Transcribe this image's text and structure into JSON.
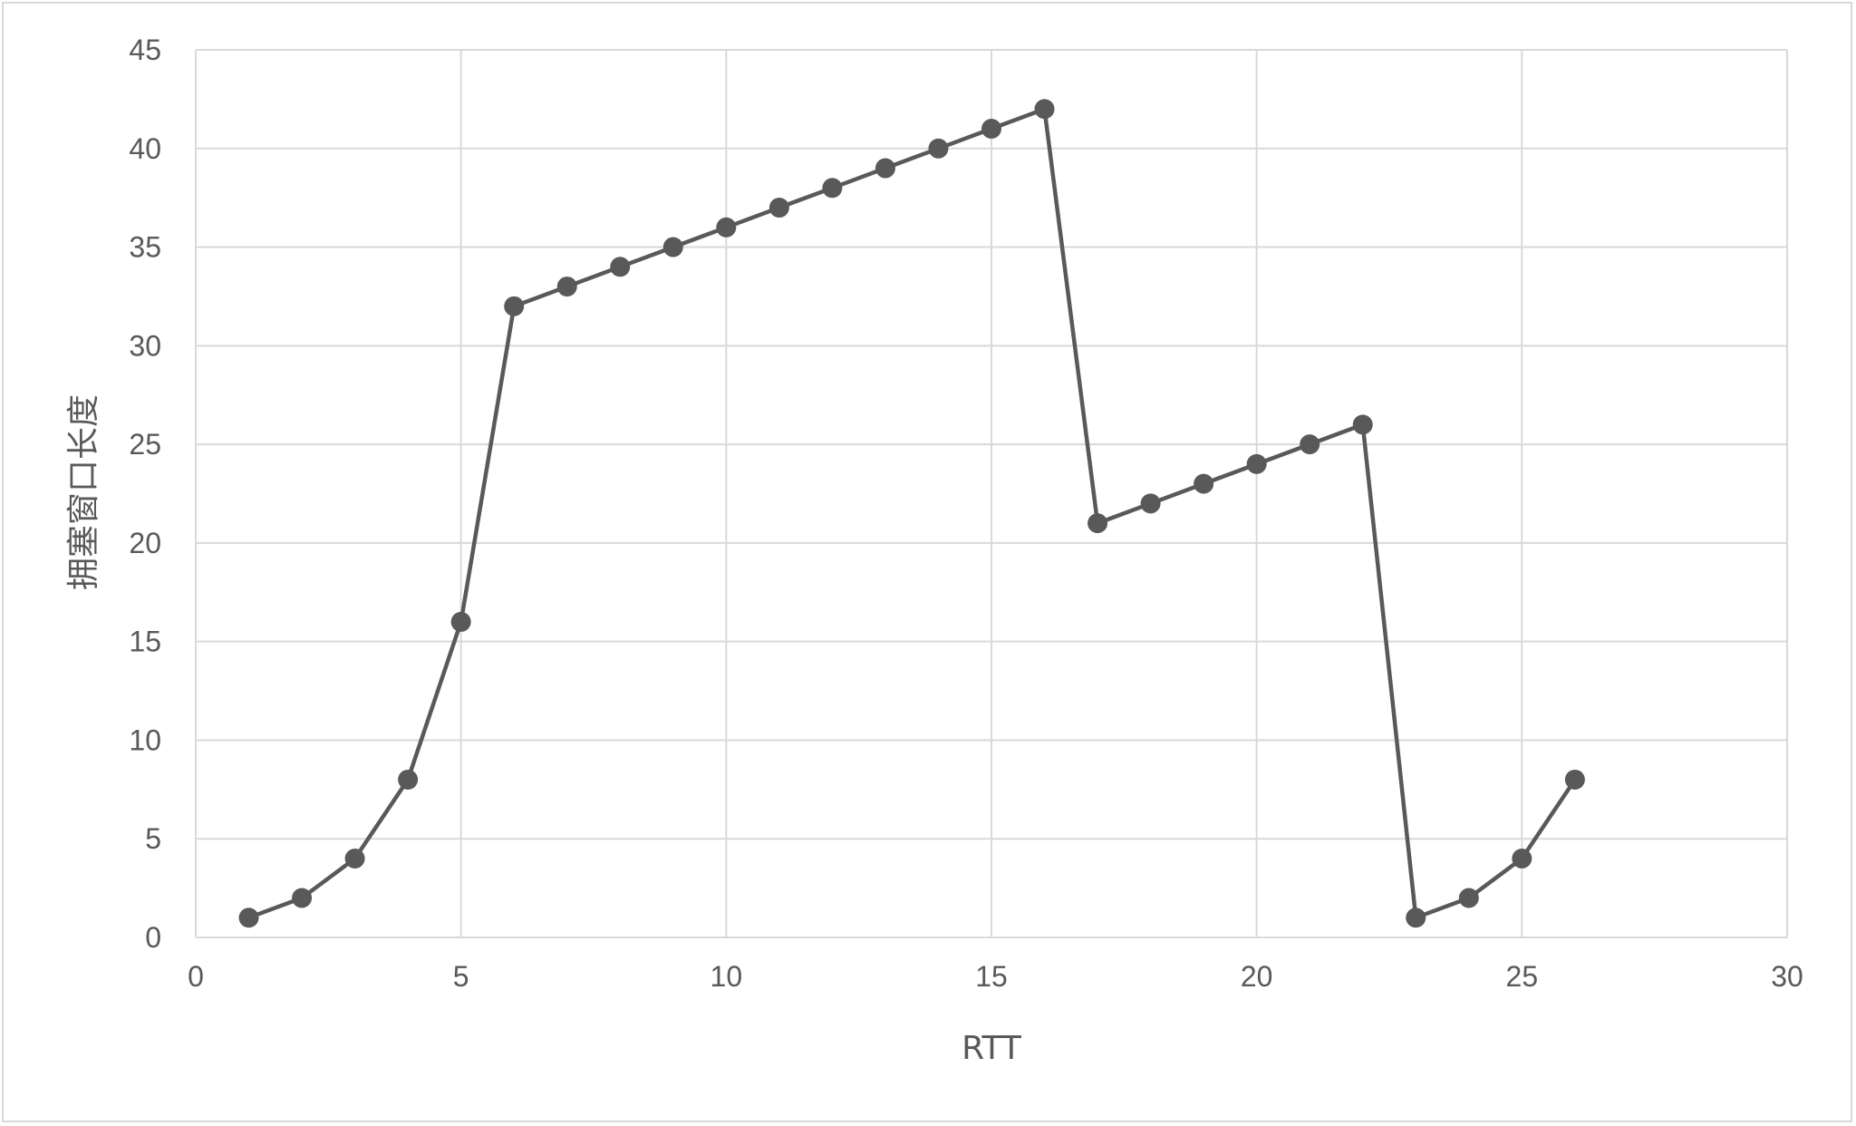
{
  "chart_data": {
    "type": "scatter",
    "title": "",
    "xlabel": "RTT",
    "ylabel": "拥塞窗口长度",
    "xlim": [
      0,
      30
    ],
    "ylim": [
      0,
      45
    ],
    "xticks": [
      0,
      5,
      10,
      15,
      20,
      25,
      30
    ],
    "yticks": [
      0,
      5,
      10,
      15,
      20,
      25,
      30,
      35,
      40,
      45
    ],
    "grid": true,
    "legend": "none",
    "line_style": "straight lines with markers",
    "colors": {
      "series": "#595959",
      "grid": "#d9d9d9",
      "text": "#595959"
    },
    "series": [
      {
        "x": [
          1,
          2,
          3,
          4,
          5,
          6,
          7,
          8,
          9,
          10,
          11,
          12,
          13,
          14,
          15,
          16,
          17,
          18,
          19,
          20,
          21,
          22,
          23,
          24,
          25,
          26
        ],
        "y": [
          1,
          2,
          4,
          8,
          16,
          32,
          33,
          34,
          35,
          36,
          37,
          38,
          39,
          40,
          41,
          42,
          21,
          22,
          23,
          24,
          25,
          26,
          1,
          2,
          4,
          8
        ]
      }
    ]
  }
}
